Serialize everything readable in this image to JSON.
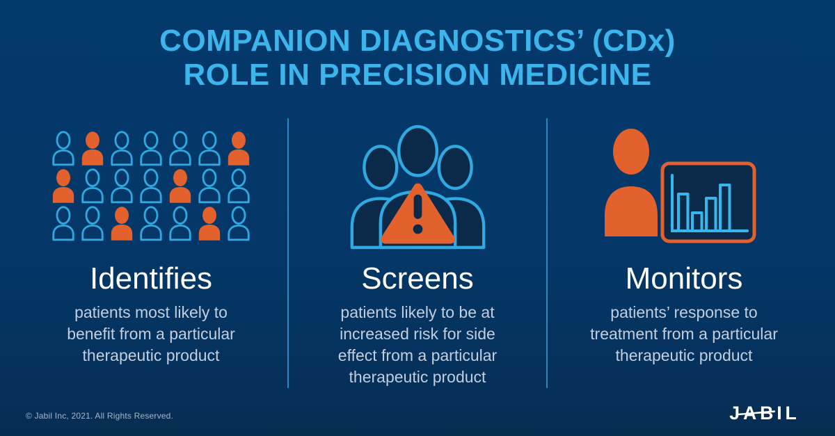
{
  "title": {
    "text": "COMPANION DIAGNOSTICS’ (CDx)\nROLE IN PRECISION MEDICINE"
  },
  "columns": [
    {
      "heading": "Identifies",
      "description": "patients most likely to\nbenefit from a particular\ntherapeutic product"
    },
    {
      "heading": "Screens",
      "description": "patients likely to be at\nincreased risk for side\neffect from a particular\ntherapeutic product"
    },
    {
      "heading": "Monitors",
      "description": "patients’ response to\ntreatment from a particular\ntherapeutic product"
    }
  ],
  "icons": {
    "crowd": {
      "rows": [
        "OFOOOOF",
        "FOOOFOO",
        "OOFOOFO"
      ],
      "legend": {
        "O": "outlined-patient",
        "F": "highlighted-patient"
      }
    },
    "monitor_chart": {
      "type": "bar",
      "values": [
        62,
        30,
        55,
        78
      ]
    }
  },
  "footer": {
    "copyright": "© Jabil Inc, 2021. All Rights Reserved.",
    "logo_text": "JABIL"
  },
  "colors": {
    "background": "#04396c",
    "accent_blue": "#3cb5ec",
    "outline_blue": "#2fa9e1",
    "orange": "#e2612c",
    "dark_navy": "#0b2a49",
    "heading_white": "#ffffff",
    "body_text": "#c3cedd"
  }
}
